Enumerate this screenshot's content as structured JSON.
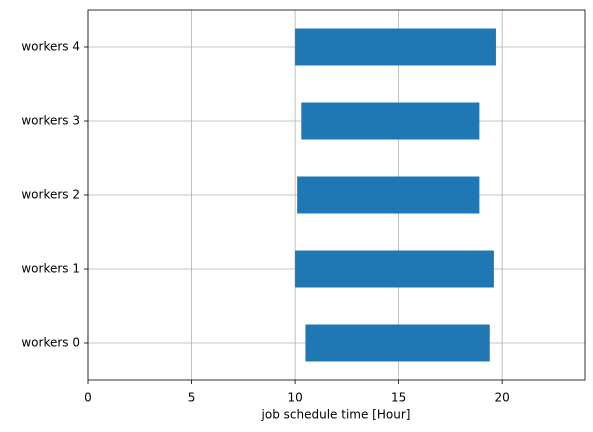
{
  "chart_data": {
    "type": "gantt",
    "xlabel": "job schedule time [Hour]",
    "categories": [
      "workers 0",
      "workers 1",
      "workers 2",
      "workers 3",
      "workers 4"
    ],
    "start": [
      10.5,
      10.0,
      10.1,
      10.3,
      10.0
    ],
    "end": [
      19.4,
      19.6,
      18.9,
      18.9,
      19.7
    ],
    "color": "#1f77b4",
    "xlim": [
      0,
      24
    ],
    "xticks": [
      0,
      5,
      10,
      15,
      20
    ],
    "grid": true
  }
}
